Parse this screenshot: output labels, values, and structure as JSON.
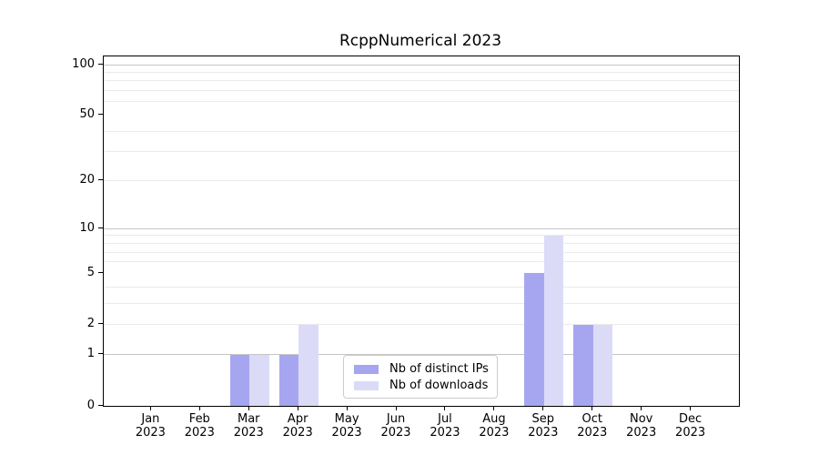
{
  "title": "RcppNumerical 2023",
  "colors": {
    "ips_bar": "#a6a6f0",
    "downloads_bar": "#dbdbf8",
    "grid_major": "#c6c6c6",
    "grid_minor": "#eaeaea",
    "axis": "#000000",
    "legend_border": "#cccccc"
  },
  "legend": {
    "items": [
      {
        "label": "Nb of distinct IPs",
        "series": "ips"
      },
      {
        "label": "Nb of downloads",
        "series": "downloads"
      }
    ]
  },
  "chart_data": {
    "type": "bar",
    "title": "RcppNumerical 2023",
    "categories": [
      "Jan",
      "Feb",
      "Mar",
      "Apr",
      "May",
      "Jun",
      "Jul",
      "Aug",
      "Sep",
      "Oct",
      "Nov",
      "Dec"
    ],
    "year": "2023",
    "series": [
      {
        "name": "Nb of distinct IPs",
        "key": "ips",
        "values": [
          0,
          0,
          1,
          1,
          0,
          0,
          0,
          0,
          5,
          2,
          0,
          0
        ]
      },
      {
        "name": "Nb of downloads",
        "key": "downloads",
        "values": [
          0,
          0,
          1,
          2,
          0,
          0,
          0,
          0,
          9,
          2,
          0,
          0
        ]
      }
    ],
    "xlabel": "",
    "ylabel": "",
    "yscale": "log1p",
    "ylim": [
      0,
      112
    ],
    "y_major_ticks": [
      0,
      1,
      2,
      5,
      10,
      20,
      50,
      100
    ],
    "y_decade_gridlines": [
      1,
      10,
      100
    ],
    "y_minor_gridlines": [
      2,
      3,
      4,
      6,
      7,
      8,
      9,
      20,
      30,
      40,
      60,
      70,
      80,
      90
    ],
    "grid": "on",
    "legend_position": "lower center"
  }
}
